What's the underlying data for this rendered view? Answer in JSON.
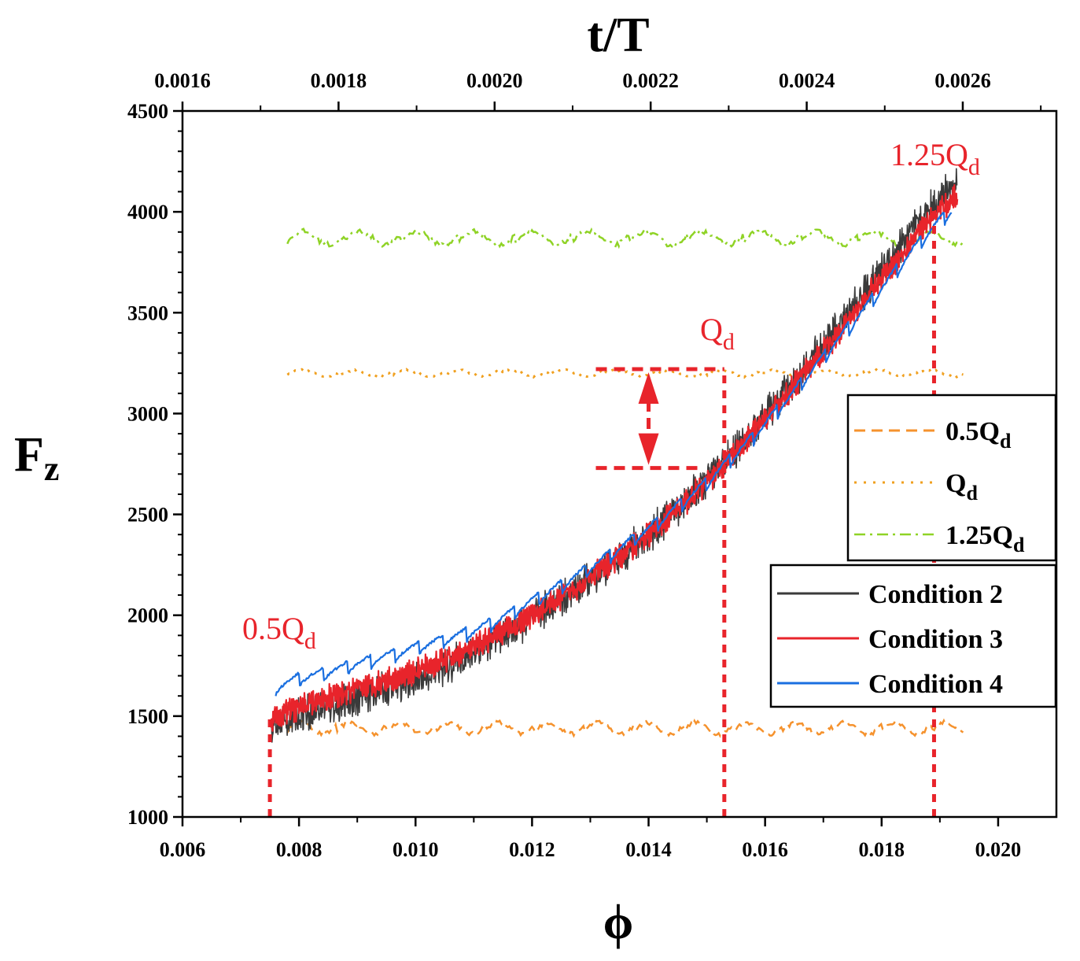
{
  "chart_data": {
    "type": "line",
    "title": "",
    "xlabel": "ϕ",
    "ylabel": "F",
    "ylabel_sub": "z",
    "x2label": "t/T",
    "xlim": [
      0.006,
      0.021
    ],
    "ylim": [
      1000,
      4500
    ],
    "x2lim": [
      0.0016,
      0.00272
    ],
    "x_ticks": [
      "0.006",
      "0.008",
      "0.010",
      "0.012",
      "0.014",
      "0.016",
      "0.018",
      "0.020"
    ],
    "x2_ticks": [
      "0.0016",
      "0.0018",
      "0.0020",
      "0.0022",
      "0.0024",
      "0.0026"
    ],
    "y_ticks": [
      "1000",
      "1500",
      "2000",
      "2500",
      "3000",
      "3500",
      "4000",
      "4500"
    ],
    "colors": {
      "condition2": "#3a3a3a",
      "condition3": "#e8242b",
      "condition4": "#1a6fe0",
      "q05": "#f5922d",
      "q1": "#f0a020",
      "q125": "#8fd326",
      "annotation": "#e8242b"
    },
    "series": [
      {
        "name": "Condition 2",
        "x": [
          0.00752,
          0.008,
          0.0085,
          0.009,
          0.0095,
          0.01,
          0.0105,
          0.011,
          0.0115,
          0.012,
          0.0125,
          0.013,
          0.0135,
          0.014,
          0.0145,
          0.015,
          0.0155,
          0.016,
          0.0165,
          0.017,
          0.0175,
          0.018,
          0.0185,
          0.019,
          0.0193
        ],
        "y": [
          1440,
          1505,
          1545,
          1585,
          1635,
          1680,
          1740,
          1815,
          1900,
          1985,
          2080,
          2180,
          2290,
          2400,
          2530,
          2670,
          2820,
          2990,
          3160,
          3340,
          3520,
          3710,
          3900,
          4070,
          4140
        ],
        "noise": 70
      },
      {
        "name": "Condition 3",
        "x": [
          0.00752,
          0.008,
          0.0085,
          0.009,
          0.0095,
          0.01,
          0.0105,
          0.011,
          0.0115,
          0.012,
          0.0125,
          0.013,
          0.0135,
          0.014,
          0.0145,
          0.015,
          0.0155,
          0.016,
          0.0165,
          0.017,
          0.0175,
          0.018,
          0.0185,
          0.019,
          0.0193
        ],
        "y": [
          1490,
          1545,
          1590,
          1630,
          1675,
          1720,
          1775,
          1840,
          1920,
          2000,
          2090,
          2185,
          2290,
          2400,
          2525,
          2660,
          2810,
          2970,
          3140,
          3310,
          3490,
          3670,
          3850,
          4010,
          4080
        ],
        "noise": 50
      },
      {
        "name": "Condition 4",
        "x": [
          0.0076,
          0.008,
          0.0085,
          0.009,
          0.0095,
          0.01,
          0.0105,
          0.011,
          0.0115,
          0.012,
          0.0125,
          0.013,
          0.0135,
          0.014,
          0.0145,
          0.015,
          0.0155,
          0.016,
          0.0165,
          0.017,
          0.0175,
          0.018,
          0.0185,
          0.019,
          0.0192
        ],
        "y": [
          1640,
          1680,
          1710,
          1750,
          1790,
          1830,
          1870,
          1915,
          1980,
          2060,
          2140,
          2230,
          2320,
          2420,
          2530,
          2650,
          2790,
          2940,
          3100,
          3270,
          3440,
          3610,
          3790,
          3950,
          4000
        ],
        "noise": 55
      },
      {
        "name": "0.5Q_d",
        "x_range": [
          0.0078,
          0.0194
        ],
        "mean": 1440,
        "amplitude": 60
      },
      {
        "name": "Q_d",
        "x_range": [
          0.0078,
          0.0194
        ],
        "mean": 3200,
        "amplitude": 30
      },
      {
        "name": "1.25Q_d",
        "x_range": [
          0.0078,
          0.0194
        ],
        "mean": 3870,
        "amplitude": 70
      }
    ],
    "legend_flow": [
      {
        "key": "q05",
        "label": "0.5Q",
        "sub": "d"
      },
      {
        "key": "q1",
        "label": "Q",
        "sub": "d"
      },
      {
        "key": "q125",
        "label": "1.25Q",
        "sub": "d"
      }
    ],
    "legend_conditions": [
      {
        "key": "condition2",
        "label": "Condition 2"
      },
      {
        "key": "condition3",
        "label": "Condition 3"
      },
      {
        "key": "condition4",
        "label": "Condition 4"
      }
    ],
    "annotations": [
      {
        "label": "0.5Q",
        "sub": "d",
        "x": 0.0075,
        "y": 1000,
        "y_top": 1500
      },
      {
        "label": "Q",
        "sub": "d",
        "x": 0.0153,
        "y": 1000,
        "y_top": 3220
      },
      {
        "label": "1.25Q",
        "sub": "d",
        "x": 0.0189,
        "y": 1000,
        "y_top": 4020
      }
    ],
    "arrow": {
      "x": 0.014,
      "y_top": 3220,
      "y_bottom": 2730,
      "x_from": 0.0135,
      "x_to_top": 0.0153,
      "x_to_bottom": 0.0149
    }
  }
}
